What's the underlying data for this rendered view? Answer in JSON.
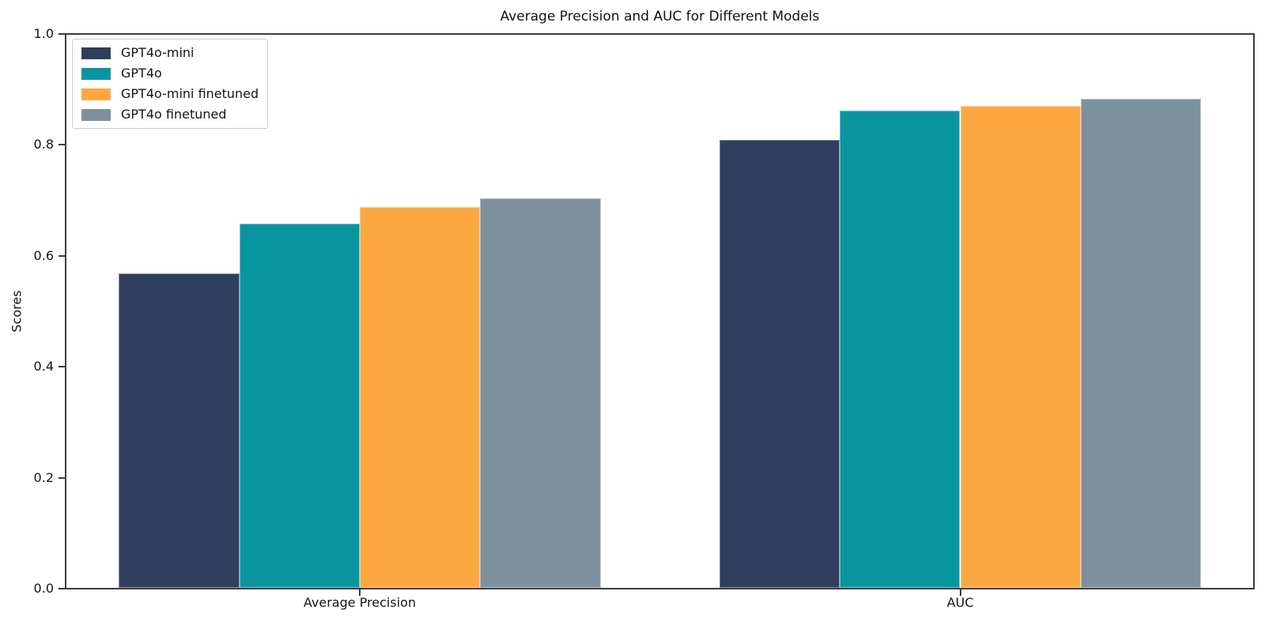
{
  "chart_data": {
    "type": "bar",
    "title": "Average Precision and AUC for Different Models",
    "xlabel": "",
    "ylabel": "Scores",
    "categories": [
      "Average Precision",
      "AUC"
    ],
    "series": [
      {
        "name": "GPT4o-mini",
        "color": "#2F3E5C",
        "values": [
          0.568,
          0.81
        ]
      },
      {
        "name": "GPT4o",
        "color": "#0995A0",
        "values": [
          0.658,
          0.863
        ]
      },
      {
        "name": "GPT4o-mini finetuned",
        "color": "#FCA842",
        "values": [
          0.689,
          0.871
        ]
      },
      {
        "name": "GPT4o finetuned",
        "color": "#7D929E",
        "values": [
          0.705,
          0.885
        ]
      }
    ],
    "ylim": [
      0.0,
      1.0
    ],
    "yticks": [
      "0.0",
      "0.2",
      "0.4",
      "0.6",
      "0.8",
      "1.0"
    ],
    "grid": false,
    "legend_position": "upper left",
    "bar_width": 0.2
  }
}
